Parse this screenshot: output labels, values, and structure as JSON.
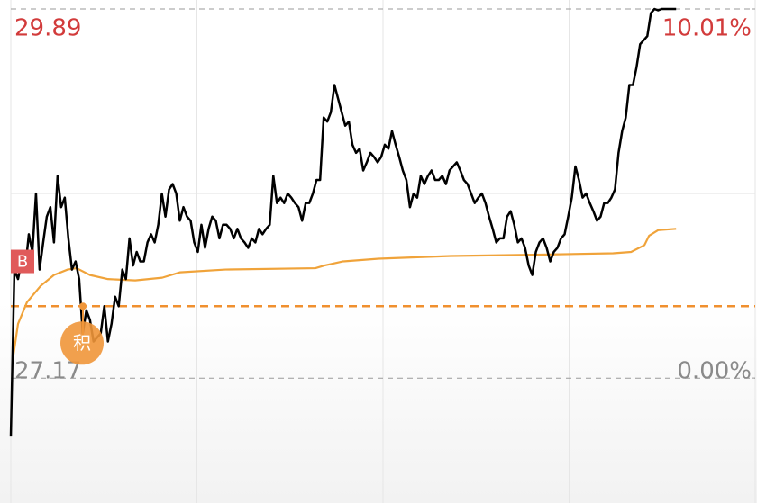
{
  "chart_data": {
    "type": "line",
    "xlim": [
      0,
      207
    ],
    "xticks": [
      0,
      51.75,
      103.5,
      155.25,
      207
    ],
    "ylim": [
      26.25,
      29.89
    ],
    "yticks": [
      29.89,
      27.17
    ],
    "y2lim": [
      -3.39,
      10.01
    ],
    "y2ticks": [
      {
        "value": 10.01,
        "label": "10.01%"
      },
      {
        "value": 0,
        "label": "0.00%"
      }
    ],
    "gridlines_y": [
      28.53
    ],
    "grid": true,
    "reference_line": {
      "value": 27.7,
      "color": "#f0902f"
    },
    "series": [
      {
        "color": "#000000",
        "x": [
          0,
          1,
          2,
          3,
          4,
          5,
          6,
          7,
          8,
          9,
          10,
          11,
          12,
          13,
          14,
          15,
          16,
          17,
          18,
          19,
          20,
          21,
          22,
          23,
          24,
          25,
          26,
          27,
          28,
          29,
          30,
          31,
          32,
          33,
          34,
          35,
          36,
          37,
          38,
          39,
          40,
          41,
          42,
          43,
          44,
          45,
          46,
          47,
          48,
          49,
          50,
          51,
          52,
          53,
          54,
          55,
          56,
          57,
          58,
          59,
          60,
          61,
          62,
          63,
          64,
          65,
          66,
          67,
          68,
          69,
          70,
          71,
          72,
          73,
          74,
          75,
          76,
          77,
          78,
          79,
          80,
          81,
          82,
          83,
          84,
          85,
          86,
          87,
          88,
          89,
          90,
          91,
          92,
          93,
          94,
          95,
          96,
          97,
          98,
          99,
          100,
          101,
          102,
          103,
          104,
          105,
          106,
          107,
          108,
          109,
          110,
          111,
          112,
          113,
          114,
          115,
          116,
          117,
          118,
          119,
          120,
          121,
          122,
          123,
          124,
          125,
          126,
          127,
          128,
          129,
          130,
          131,
          132,
          133,
          134,
          135,
          136,
          137,
          138,
          139,
          140,
          141,
          142,
          143,
          144,
          145,
          146,
          147,
          148,
          149,
          150,
          151,
          152,
          153,
          154,
          155,
          156,
          157,
          158,
          159,
          160,
          161,
          162,
          163,
          164,
          165,
          166,
          167,
          168,
          169,
          170,
          171,
          172,
          173,
          174,
          175,
          176,
          177,
          178,
          179,
          180,
          181,
          182,
          183,
          184,
          185
        ],
        "values": [
          26.74,
          27.97,
          27.9,
          28.03,
          27.97,
          28.23,
          28.1,
          28.53,
          27.97,
          28.17,
          28.36,
          28.43,
          28.17,
          28.66,
          28.43,
          28.5,
          28.2,
          27.97,
          28.03,
          27.9,
          27.5,
          27.67,
          27.6,
          27.44,
          27.47,
          27.5,
          27.7,
          27.44,
          27.57,
          27.77,
          27.7,
          27.97,
          27.9,
          28.2,
          28.0,
          28.1,
          28.03,
          28.03,
          28.17,
          28.23,
          28.17,
          28.3,
          28.53,
          28.36,
          28.56,
          28.6,
          28.53,
          28.33,
          28.43,
          28.36,
          28.33,
          28.17,
          28.1,
          28.3,
          28.13,
          28.27,
          28.36,
          28.33,
          28.2,
          28.3,
          28.3,
          28.27,
          28.2,
          28.27,
          28.2,
          28.17,
          28.13,
          28.2,
          28.17,
          28.27,
          28.23,
          28.27,
          28.3,
          28.66,
          28.46,
          28.5,
          28.46,
          28.53,
          28.5,
          28.46,
          28.43,
          28.33,
          28.46,
          28.46,
          28.53,
          28.63,
          28.63,
          29.09,
          29.06,
          29.13,
          29.33,
          29.23,
          29.13,
          29.03,
          29.06,
          28.89,
          28.83,
          28.86,
          28.7,
          28.76,
          28.83,
          28.8,
          28.76,
          28.8,
          28.89,
          28.86,
          28.99,
          28.89,
          28.8,
          28.7,
          28.63,
          28.43,
          28.53,
          28.5,
          28.66,
          28.6,
          28.66,
          28.7,
          28.63,
          28.63,
          28.66,
          28.6,
          28.7,
          28.73,
          28.76,
          28.7,
          28.63,
          28.6,
          28.53,
          28.46,
          28.5,
          28.53,
          28.46,
          28.36,
          28.27,
          28.17,
          28.2,
          28.2,
          28.36,
          28.4,
          28.3,
          28.17,
          28.2,
          28.13,
          28.0,
          27.93,
          28.1,
          28.17,
          28.2,
          28.13,
          28.03,
          28.1,
          28.13,
          28.2,
          28.23,
          28.36,
          28.5,
          28.73,
          28.63,
          28.5,
          28.53,
          28.46,
          28.4,
          28.33,
          28.36,
          28.46,
          28.46,
          28.5,
          28.56,
          28.83,
          28.99,
          29.09,
          29.33,
          29.33,
          29.46,
          29.63,
          29.66,
          29.69,
          29.86,
          29.89,
          29.88,
          29.89,
          29.89,
          29.89,
          29.89,
          29.89
        ]
      },
      {
        "color": "#f0a33a",
        "x": [
          0.5,
          2,
          4.5,
          8.3,
          12,
          15.8,
          18.3,
          22,
          27,
          34.6,
          42.1,
          47.1,
          59.7,
          84.7,
          87.2,
          92.3,
          102.3,
          122.3,
          147.4,
          167.5,
          172.5,
          176.2,
          177.5,
          180,
          185
        ],
        "values": [
          27.3,
          27.57,
          27.73,
          27.85,
          27.93,
          27.97,
          27.98,
          27.93,
          27.9,
          27.89,
          27.91,
          27.95,
          27.97,
          27.98,
          28.0,
          28.03,
          28.05,
          28.07,
          28.08,
          28.09,
          28.1,
          28.15,
          28.22,
          28.26,
          28.27
        ]
      }
    ],
    "markers": [
      {
        "label": "B",
        "x": 0,
        "value": 28.03,
        "color": "#e05a5a"
      },
      {
        "label": "积",
        "x": 19.8,
        "value": 27.7,
        "color": "#f0963a"
      }
    ]
  }
}
